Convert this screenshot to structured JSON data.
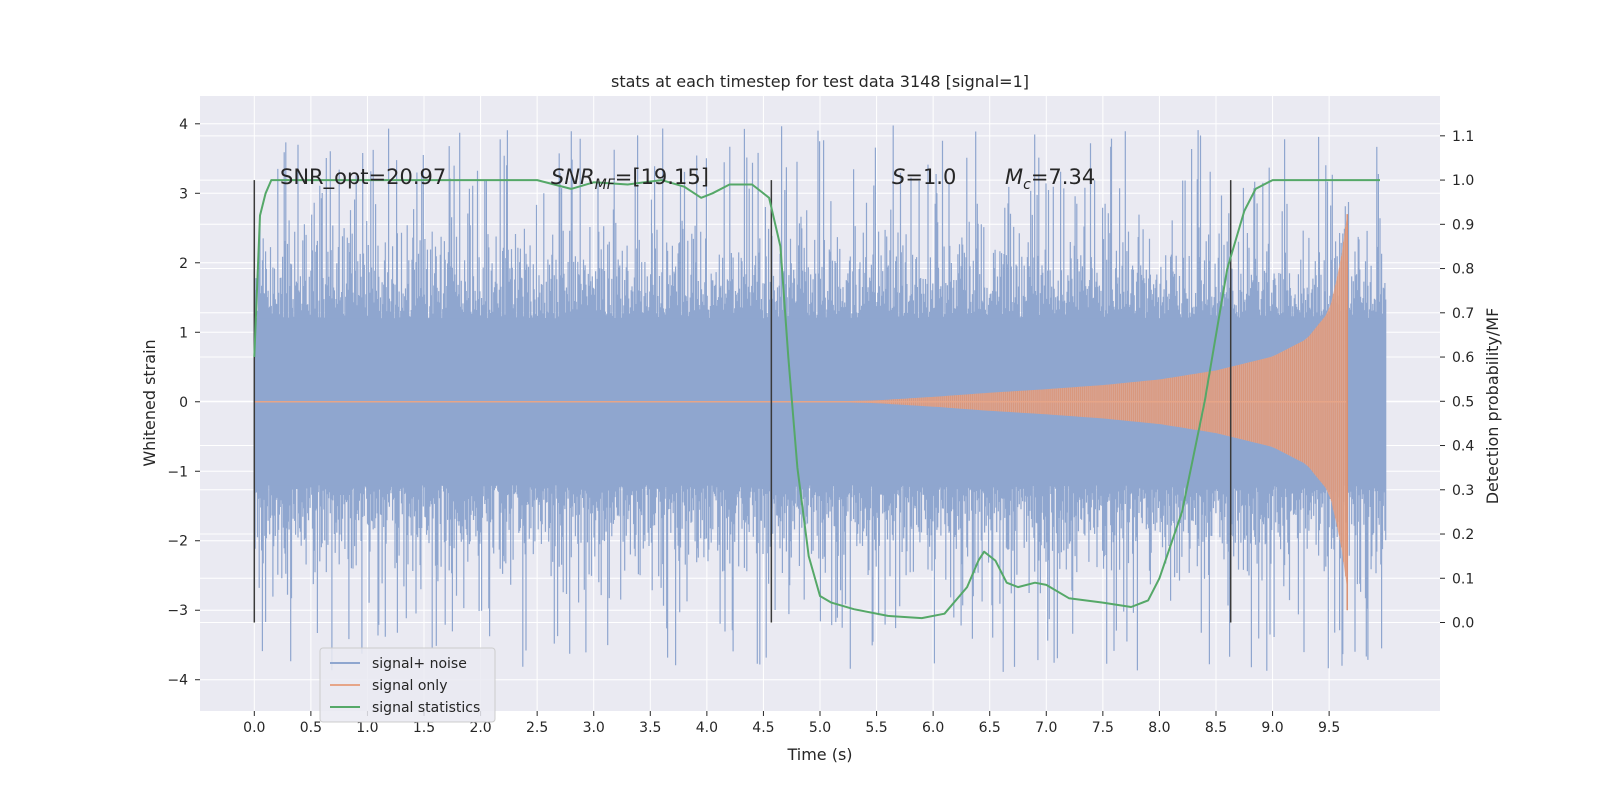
{
  "chart_data": {
    "type": "line",
    "title": "stats at each timestep for test data 3148 [signal=1]",
    "xlabel": "Time (s)",
    "ylabel_left": "Whitened strain",
    "ylabel_right": "Detection probability/MF",
    "xlim": [
      -0.48,
      10.48
    ],
    "ylim_left": [
      -4.45,
      4.4
    ],
    "ylim_right": [
      -0.2,
      1.19
    ],
    "x_ticks": [
      0.0,
      0.5,
      1.0,
      1.5,
      2.0,
      2.5,
      3.0,
      3.5,
      4.0,
      4.5,
      5.0,
      5.5,
      6.0,
      6.5,
      7.0,
      7.5,
      8.0,
      8.5,
      9.0,
      9.5
    ],
    "x_tick_labels": [
      "0.0",
      "0.5",
      "1.0",
      "1.5",
      "2.0",
      "2.5",
      "3.0",
      "3.5",
      "4.0",
      "4.5",
      "5.0",
      "5.5",
      "6.0",
      "6.5",
      "7.0",
      "7.5",
      "8.0",
      "8.5",
      "9.0",
      "9.5"
    ],
    "y_left_ticks": [
      4,
      3,
      2,
      1,
      0,
      -1,
      -2,
      -3,
      -4
    ],
    "y_left_tick_labels": [
      "4",
      "3",
      "2",
      "1",
      "0",
      "−1",
      "−2",
      "−3",
      "−4"
    ],
    "y_right_ticks": [
      1.1,
      1.0,
      0.9,
      0.8,
      0.7,
      0.6,
      0.5,
      0.4,
      0.3,
      0.2,
      0.1,
      0.0
    ],
    "y_right_tick_labels": [
      "1.1",
      "1.0",
      "0.9",
      "0.8",
      "0.7",
      "0.6",
      "0.5",
      "0.4",
      "0.3",
      "0.2",
      "0.1",
      "0.0"
    ],
    "grid": true,
    "legend_position": "lower-left",
    "annotations": {
      "snr_opt": "SNR_opt=20.97",
      "snr_mf_main": "SNR",
      "snr_mf_sub": "MF",
      "snr_mf_value": "=[19.15]",
      "s_var": "S",
      "s_value": "=1.0",
      "mc_var": "M",
      "mc_sub": "c",
      "mc_value": "=7.34"
    },
    "vertical_markers": [
      0.0,
      4.57,
      8.63
    ],
    "series": [
      {
        "name": "signal+ noise",
        "axis": "left",
        "color": "#8fa6cf",
        "x_range": [
          0.0,
          10.0
        ],
        "envelope_min": -3.9,
        "envelope_max": 4.0
      },
      {
        "name": "signal only",
        "axis": "left",
        "color": "#e6a588",
        "x_range": [
          0.0,
          9.66
        ],
        "envelope": {
          "x": [
            0.0,
            5.0,
            5.5,
            6.0,
            6.5,
            7.0,
            7.5,
            8.0,
            8.5,
            9.0,
            9.3,
            9.5,
            9.6,
            9.66
          ],
          "amp": [
            0.0,
            0.0,
            0.02,
            0.07,
            0.13,
            0.18,
            0.24,
            0.32,
            0.45,
            0.65,
            0.9,
            1.3,
            2.0,
            2.7
          ]
        }
      },
      {
        "name": "signal statistics",
        "axis": "right",
        "color": "#55a868",
        "x": [
          0.0,
          0.05,
          0.1,
          0.15,
          0.3,
          1.0,
          2.0,
          2.5,
          2.8,
          3.0,
          3.3,
          3.6,
          3.8,
          3.95,
          4.05,
          4.2,
          4.4,
          4.55,
          4.65,
          4.72,
          4.8,
          4.9,
          5.0,
          5.1,
          5.3,
          5.6,
          5.9,
          6.1,
          6.3,
          6.4,
          6.45,
          6.55,
          6.65,
          6.75,
          6.9,
          7.0,
          7.2,
          7.5,
          7.75,
          7.9,
          8.0,
          8.2,
          8.4,
          8.6,
          8.75,
          8.85,
          9.0,
          9.3,
          9.95
        ],
        "y": [
          0.6,
          0.92,
          0.97,
          1.0,
          1.0,
          1.0,
          1.0,
          1.0,
          0.98,
          0.995,
          0.99,
          1.0,
          0.985,
          0.96,
          0.97,
          0.99,
          0.99,
          0.96,
          0.85,
          0.6,
          0.35,
          0.15,
          0.06,
          0.045,
          0.03,
          0.015,
          0.01,
          0.02,
          0.08,
          0.14,
          0.16,
          0.14,
          0.09,
          0.08,
          0.09,
          0.085,
          0.055,
          0.045,
          0.035,
          0.05,
          0.1,
          0.25,
          0.5,
          0.8,
          0.93,
          0.98,
          1.0,
          1.0,
          1.0
        ]
      }
    ]
  }
}
